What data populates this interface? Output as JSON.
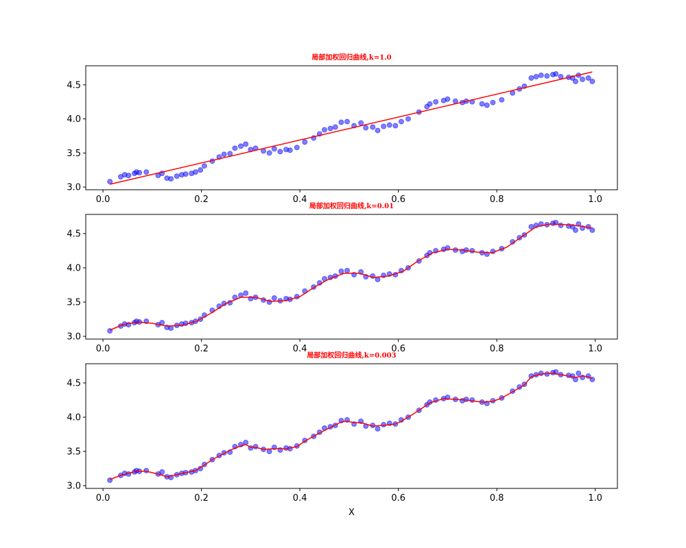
{
  "chart_data": [
    {
      "type": "scatter",
      "title": "局部加权回归曲线,k=1.0",
      "xlabel": "",
      "ylabel": "",
      "xlim": [
        -0.035,
        1.045
      ],
      "ylim": [
        2.96,
        4.78
      ],
      "xticks": [
        0.0,
        0.2,
        0.4,
        0.6,
        0.8,
        1.0
      ],
      "xtick_labels": [
        "0.0",
        "0.2",
        "0.4",
        "0.6",
        "0.8",
        "1.0"
      ],
      "yticks": [
        3.0,
        3.5,
        4.0,
        4.5
      ],
      "ytick_labels": [
        "3.0",
        "3.5",
        "4.0",
        "4.5"
      ],
      "colors": {
        "points": "#0000ff",
        "line": "#ff0000",
        "title": "#ff0000"
      },
      "series": [
        {
          "type": "scatter",
          "x": [
            0.014,
            0.036,
            0.044,
            0.052,
            0.064,
            0.068,
            0.074,
            0.088,
            0.112,
            0.12,
            0.13,
            0.138,
            0.15,
            0.16,
            0.168,
            0.18,
            0.188,
            0.198,
            0.206,
            0.222,
            0.236,
            0.246,
            0.258,
            0.268,
            0.28,
            0.29,
            0.3,
            0.31,
            0.326,
            0.338,
            0.348,
            0.36,
            0.372,
            0.38,
            0.394,
            0.41,
            0.428,
            0.44,
            0.45,
            0.462,
            0.472,
            0.484,
            0.496,
            0.51,
            0.524,
            0.534,
            0.548,
            0.558,
            0.57,
            0.582,
            0.594,
            0.606,
            0.62,
            0.642,
            0.658,
            0.664,
            0.676,
            0.692,
            0.7,
            0.716,
            0.73,
            0.738,
            0.75,
            0.77,
            0.78,
            0.792,
            0.81,
            0.832,
            0.846,
            0.856,
            0.87,
            0.88,
            0.89,
            0.902,
            0.914,
            0.92,
            0.93,
            0.946,
            0.954,
            0.96,
            0.966,
            0.974,
            0.986,
            0.994
          ],
          "y": [
            3.08,
            3.15,
            3.18,
            3.17,
            3.2,
            3.22,
            3.21,
            3.22,
            3.17,
            3.2,
            3.13,
            3.12,
            3.16,
            3.18,
            3.19,
            3.2,
            3.22,
            3.25,
            3.31,
            3.38,
            3.44,
            3.48,
            3.49,
            3.57,
            3.6,
            3.63,
            3.55,
            3.57,
            3.53,
            3.5,
            3.56,
            3.52,
            3.55,
            3.54,
            3.58,
            3.66,
            3.72,
            3.78,
            3.84,
            3.86,
            3.88,
            3.95,
            3.96,
            3.9,
            3.94,
            3.87,
            3.88,
            3.83,
            3.89,
            3.91,
            3.9,
            3.96,
            4.0,
            4.1,
            4.18,
            4.22,
            4.25,
            4.27,
            4.29,
            4.26,
            4.24,
            4.26,
            4.25,
            4.22,
            4.2,
            4.24,
            4.28,
            4.38,
            4.44,
            4.48,
            4.6,
            4.62,
            4.64,
            4.63,
            4.65,
            4.66,
            4.62,
            4.61,
            4.6,
            4.55,
            4.64,
            4.58,
            4.6,
            4.55
          ]
        },
        {
          "type": "line",
          "x": [
            0.014,
            0.994
          ],
          "y": [
            3.04,
            4.69
          ]
        }
      ]
    },
    {
      "type": "scatter",
      "title": "局部加权回归曲线,k=0.01",
      "xlabel": "",
      "ylabel": "",
      "xlim": [
        -0.035,
        1.045
      ],
      "ylim": [
        2.96,
        4.78
      ],
      "xticks": [
        0.0,
        0.2,
        0.4,
        0.6,
        0.8,
        1.0
      ],
      "xtick_labels": [
        "0.0",
        "0.2",
        "0.4",
        "0.6",
        "0.8",
        "1.0"
      ],
      "yticks": [
        3.0,
        3.5,
        4.0,
        4.5
      ],
      "ytick_labels": [
        "3.0",
        "3.5",
        "4.0",
        "4.5"
      ],
      "colors": {
        "points": "#0000ff",
        "line": "#ff0000",
        "title": "#ff0000"
      },
      "series": [
        {
          "type": "scatter",
          "x": [
            0.014,
            0.036,
            0.044,
            0.052,
            0.064,
            0.068,
            0.074,
            0.088,
            0.112,
            0.12,
            0.13,
            0.138,
            0.15,
            0.16,
            0.168,
            0.18,
            0.188,
            0.198,
            0.206,
            0.222,
            0.236,
            0.246,
            0.258,
            0.268,
            0.28,
            0.29,
            0.3,
            0.31,
            0.326,
            0.338,
            0.348,
            0.36,
            0.372,
            0.38,
            0.394,
            0.41,
            0.428,
            0.44,
            0.45,
            0.462,
            0.472,
            0.484,
            0.496,
            0.51,
            0.524,
            0.534,
            0.548,
            0.558,
            0.57,
            0.582,
            0.594,
            0.606,
            0.62,
            0.642,
            0.658,
            0.664,
            0.676,
            0.692,
            0.7,
            0.716,
            0.73,
            0.738,
            0.75,
            0.77,
            0.78,
            0.792,
            0.81,
            0.832,
            0.846,
            0.856,
            0.87,
            0.88,
            0.89,
            0.902,
            0.914,
            0.92,
            0.93,
            0.946,
            0.954,
            0.96,
            0.966,
            0.974,
            0.986,
            0.994
          ],
          "y": [
            3.08,
            3.15,
            3.18,
            3.17,
            3.2,
            3.22,
            3.21,
            3.22,
            3.17,
            3.2,
            3.13,
            3.12,
            3.16,
            3.18,
            3.19,
            3.2,
            3.22,
            3.25,
            3.31,
            3.38,
            3.44,
            3.48,
            3.49,
            3.57,
            3.6,
            3.63,
            3.55,
            3.57,
            3.53,
            3.5,
            3.56,
            3.52,
            3.55,
            3.54,
            3.58,
            3.66,
            3.72,
            3.78,
            3.84,
            3.86,
            3.88,
            3.95,
            3.96,
            3.9,
            3.94,
            3.87,
            3.88,
            3.83,
            3.89,
            3.91,
            3.9,
            3.96,
            4.0,
            4.1,
            4.18,
            4.22,
            4.25,
            4.27,
            4.29,
            4.26,
            4.24,
            4.26,
            4.25,
            4.22,
            4.2,
            4.24,
            4.28,
            4.38,
            4.44,
            4.48,
            4.6,
            4.62,
            4.64,
            4.63,
            4.65,
            4.66,
            4.62,
            4.61,
            4.6,
            4.55,
            4.64,
            4.58,
            4.6,
            4.55
          ]
        },
        {
          "type": "line",
          "x": [
            0.014,
            0.04,
            0.07,
            0.1,
            0.13,
            0.16,
            0.19,
            0.22,
            0.25,
            0.28,
            0.31,
            0.34,
            0.37,
            0.4,
            0.43,
            0.46,
            0.49,
            0.52,
            0.55,
            0.58,
            0.61,
            0.64,
            0.67,
            0.7,
            0.73,
            0.76,
            0.79,
            0.82,
            0.85,
            0.88,
            0.91,
            0.94,
            0.97,
            0.994
          ],
          "y": [
            3.09,
            3.17,
            3.21,
            3.19,
            3.15,
            3.16,
            3.22,
            3.34,
            3.48,
            3.57,
            3.57,
            3.51,
            3.52,
            3.58,
            3.72,
            3.84,
            3.92,
            3.92,
            3.86,
            3.88,
            3.95,
            4.1,
            4.22,
            4.27,
            4.26,
            4.23,
            4.22,
            4.3,
            4.45,
            4.6,
            4.64,
            4.63,
            4.61,
            4.58
          ]
        }
      ]
    },
    {
      "type": "scatter",
      "title": "局部加权回归曲线,k=0.003",
      "xlabel": "X",
      "ylabel": "",
      "xlim": [
        -0.035,
        1.045
      ],
      "ylim": [
        2.96,
        4.78
      ],
      "xticks": [
        0.0,
        0.2,
        0.4,
        0.6,
        0.8,
        1.0
      ],
      "xtick_labels": [
        "0.0",
        "0.2",
        "0.4",
        "0.6",
        "0.8",
        "1.0"
      ],
      "yticks": [
        3.0,
        3.5,
        4.0,
        4.5
      ],
      "ytick_labels": [
        "3.0",
        "3.5",
        "4.0",
        "4.5"
      ],
      "colors": {
        "points": "#0000ff",
        "line": "#ff0000",
        "title": "#ff0000"
      },
      "series": [
        {
          "type": "scatter",
          "x": [
            0.014,
            0.036,
            0.044,
            0.052,
            0.064,
            0.068,
            0.074,
            0.088,
            0.112,
            0.12,
            0.13,
            0.138,
            0.15,
            0.16,
            0.168,
            0.18,
            0.188,
            0.198,
            0.206,
            0.222,
            0.236,
            0.246,
            0.258,
            0.268,
            0.28,
            0.29,
            0.3,
            0.31,
            0.326,
            0.338,
            0.348,
            0.36,
            0.372,
            0.38,
            0.394,
            0.41,
            0.428,
            0.44,
            0.45,
            0.462,
            0.472,
            0.484,
            0.496,
            0.51,
            0.524,
            0.534,
            0.548,
            0.558,
            0.57,
            0.582,
            0.594,
            0.606,
            0.62,
            0.642,
            0.658,
            0.664,
            0.676,
            0.692,
            0.7,
            0.716,
            0.73,
            0.738,
            0.75,
            0.77,
            0.78,
            0.792,
            0.81,
            0.832,
            0.846,
            0.856,
            0.87,
            0.88,
            0.89,
            0.902,
            0.914,
            0.92,
            0.93,
            0.946,
            0.954,
            0.96,
            0.966,
            0.974,
            0.986,
            0.994
          ],
          "y": [
            3.08,
            3.15,
            3.18,
            3.17,
            3.2,
            3.22,
            3.21,
            3.22,
            3.17,
            3.2,
            3.13,
            3.12,
            3.16,
            3.18,
            3.19,
            3.2,
            3.22,
            3.25,
            3.31,
            3.38,
            3.44,
            3.48,
            3.49,
            3.57,
            3.6,
            3.63,
            3.55,
            3.57,
            3.53,
            3.5,
            3.56,
            3.52,
            3.55,
            3.54,
            3.58,
            3.66,
            3.72,
            3.78,
            3.84,
            3.86,
            3.88,
            3.95,
            3.96,
            3.9,
            3.94,
            3.87,
            3.88,
            3.83,
            3.89,
            3.91,
            3.9,
            3.96,
            4.0,
            4.1,
            4.18,
            4.22,
            4.25,
            4.27,
            4.29,
            4.26,
            4.24,
            4.26,
            4.25,
            4.22,
            4.2,
            4.24,
            4.28,
            4.38,
            4.44,
            4.48,
            4.6,
            4.62,
            4.64,
            4.63,
            4.65,
            4.66,
            4.62,
            4.61,
            4.6,
            4.55,
            4.64,
            4.58,
            4.6,
            4.55
          ]
        },
        {
          "type": "line",
          "x": [
            0.014,
            0.036,
            0.052,
            0.068,
            0.088,
            0.112,
            0.13,
            0.15,
            0.168,
            0.188,
            0.206,
            0.222,
            0.246,
            0.268,
            0.28,
            0.29,
            0.3,
            0.31,
            0.326,
            0.348,
            0.372,
            0.394,
            0.41,
            0.44,
            0.462,
            0.484,
            0.496,
            0.51,
            0.524,
            0.548,
            0.57,
            0.594,
            0.606,
            0.62,
            0.642,
            0.664,
            0.692,
            0.716,
            0.738,
            0.77,
            0.792,
            0.81,
            0.832,
            0.856,
            0.87,
            0.89,
            0.914,
            0.93,
            0.946,
            0.96,
            0.974,
            0.986,
            0.994
          ],
          "y": [
            3.09,
            3.15,
            3.18,
            3.21,
            3.21,
            3.17,
            3.13,
            3.16,
            3.19,
            3.22,
            3.3,
            3.38,
            3.47,
            3.55,
            3.58,
            3.6,
            3.56,
            3.56,
            3.53,
            3.54,
            3.54,
            3.57,
            3.65,
            3.77,
            3.85,
            3.93,
            3.94,
            3.92,
            3.92,
            3.87,
            3.88,
            3.9,
            3.94,
            4.0,
            4.1,
            4.21,
            4.27,
            4.26,
            4.25,
            4.22,
            4.23,
            4.28,
            4.37,
            4.47,
            4.59,
            4.63,
            4.64,
            4.62,
            4.6,
            4.58,
            4.6,
            4.59,
            4.56
          ]
        }
      ]
    }
  ]
}
